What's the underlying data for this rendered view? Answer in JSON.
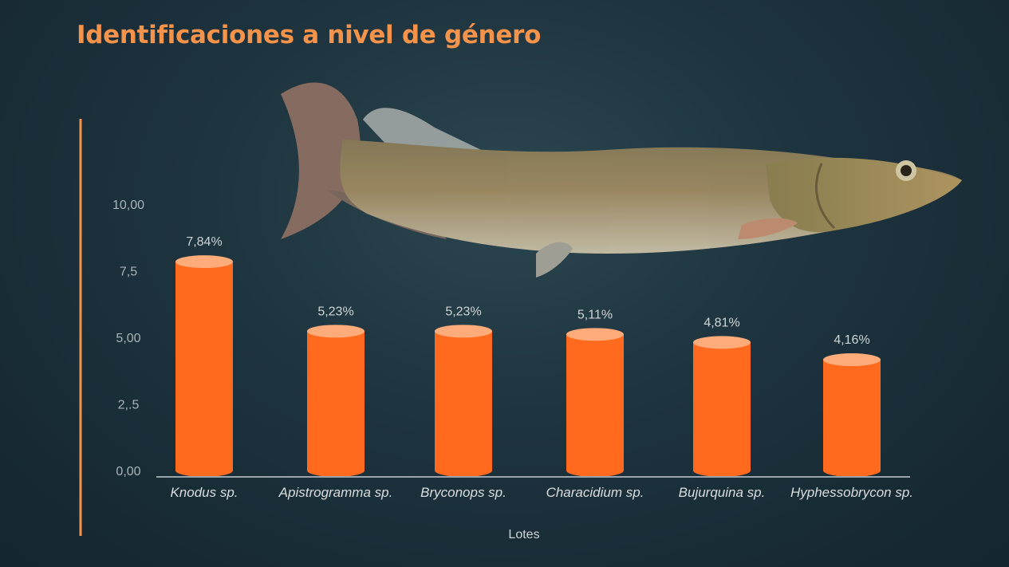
{
  "chart_data": {
    "type": "bar",
    "title": "Identificaciones a nivel de género",
    "xlabel": "Lotes",
    "ylabel": "",
    "categories": [
      "Knodus sp.",
      "Apistrogramma sp.",
      "Bryconops sp.",
      "Characidium sp.",
      "Bujurquina sp.",
      "Hyphessobrycon sp."
    ],
    "values": [
      7.84,
      5.23,
      5.23,
      5.11,
      4.81,
      4.16
    ],
    "data_labels": [
      "7,84%",
      "5,23%",
      "5,23%",
      "5,11%",
      "4,81%",
      "4,16%"
    ],
    "y_ticks": [
      0,
      2.5,
      5,
      7.5,
      10
    ],
    "y_tick_labels": [
      "0,00",
      "2,.5",
      "5,00",
      "7,5",
      "10,00"
    ],
    "ylim": [
      0,
      10
    ],
    "grid": false,
    "legend": "none",
    "colors": {
      "bar": "#ff6a1f",
      "bar_top": "#ffac7a",
      "title": "#f5934a",
      "axis_accent": "#f5934a"
    }
  }
}
